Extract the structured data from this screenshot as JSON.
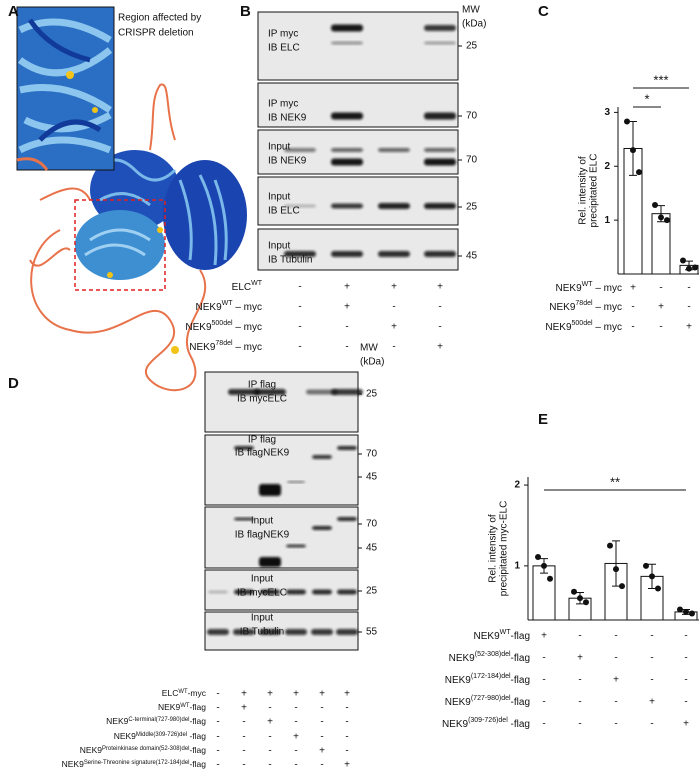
{
  "panel_labels": [
    "A",
    "B",
    "C",
    "D",
    "E"
  ],
  "panel_a": {
    "inset_caption": [
      "Region affected by",
      "CRISPR deletion"
    ]
  },
  "panel_b": {
    "mw_header": [
      "MW",
      "(kDa)"
    ],
    "blots": [
      {
        "label": [
          "IP myc",
          "IB ELC"
        ],
        "mw": [
          25
        ]
      },
      {
        "label": [
          "IP myc",
          "IB NEK9"
        ],
        "mw": [
          70
        ]
      },
      {
        "label": [
          "Input",
          "IB NEK9"
        ],
        "mw": [
          70
        ]
      },
      {
        "label": [
          "Input",
          "IB ELC"
        ],
        "mw": [
          25
        ]
      },
      {
        "label": [
          "Input",
          "IB Tubulin"
        ],
        "mw": [
          45
        ]
      }
    ],
    "conditions": [
      {
        "name": {
          "text": "ELC",
          "sup": "WT"
        },
        "signs": [
          "-",
          "+",
          "+",
          "+"
        ]
      },
      {
        "name": {
          "text": "NEK9",
          "sup": "WT",
          "suffix": " – myc"
        },
        "signs": [
          "-",
          "+",
          "-",
          "-"
        ]
      },
      {
        "name": {
          "text": "NEK9",
          "sup": "500del",
          "suffix": " – myc"
        },
        "signs": [
          "-",
          "-",
          "+",
          "-"
        ]
      },
      {
        "name": {
          "text": "NEK9",
          "sup": "78del",
          "suffix": " – myc"
        },
        "signs": [
          "-",
          "-",
          "-",
          "+"
        ]
      }
    ]
  },
  "panel_d": {
    "mw_header": [
      "MW",
      "(kDa)"
    ],
    "blots": [
      {
        "label": [
          "IP flag",
          "IB mycELC"
        ],
        "mw": [
          25
        ]
      },
      {
        "label": [
          "IP flag",
          "IB flagNEK9"
        ],
        "mw": [
          70,
          45
        ]
      },
      {
        "label": [
          "Input",
          "IB flagNEK9"
        ],
        "mw": [
          70,
          45
        ]
      },
      {
        "label": [
          "Input",
          "IB mycELC"
        ],
        "mw": [
          25
        ]
      },
      {
        "label": [
          "Input",
          "IB Tubulin"
        ],
        "mw": [
          55
        ]
      }
    ],
    "conditions": [
      {
        "name": {
          "text": "ELC",
          "sup": "WT",
          "suffix": "-myc"
        },
        "signs": [
          "-",
          "+",
          "+",
          "+",
          "+",
          "+"
        ]
      },
      {
        "name": {
          "text": "NEK9",
          "sup": "WT",
          "suffix": "-flag"
        },
        "signs": [
          "-",
          "+",
          "-",
          "-",
          "-",
          "-"
        ]
      },
      {
        "name": {
          "text": "NEK9",
          "sup": "C-terminal(727-980)del",
          "suffix": "-flag"
        },
        "signs": [
          "-",
          "-",
          "+",
          "-",
          "-",
          "-"
        ]
      },
      {
        "name": {
          "text": "NEK9",
          "sup": "Middle(309-726)del",
          "suffix": " -flag"
        },
        "signs": [
          "-",
          "-",
          "-",
          "+",
          "-",
          "-"
        ]
      },
      {
        "name": {
          "text": "NEK9",
          "sup": "Proteinkinase domain(52-308)del",
          "suffix": "-flag"
        },
        "signs": [
          "-",
          "-",
          "-",
          "-",
          "+",
          "-"
        ]
      },
      {
        "name": {
          "text": "NEK9",
          "sup": "Serine-Threonine signature(172-184)del",
          "suffix": "-flag"
        },
        "signs": [
          "-",
          "-",
          "-",
          "-",
          "-",
          "+"
        ]
      }
    ]
  },
  "chart_data": [
    {
      "type": "bar",
      "ylabel": [
        "Rel. intensity of",
        "precipitated ELC"
      ],
      "values": [
        2.33,
        1.12,
        0.16
      ],
      "errors": [
        0.5,
        0.15,
        0.08
      ],
      "points": [
        [
          2.83,
          2.3,
          1.89
        ],
        [
          1.28,
          1.05,
          1.0
        ],
        [
          0.25,
          0.1,
          0.12
        ]
      ],
      "ylim": [
        0,
        3.1
      ],
      "yticks": [
        1,
        2,
        3
      ],
      "significance": [
        "*",
        "***"
      ],
      "conditions": [
        {
          "name": {
            "text": "NEK9",
            "sup": "WT",
            "suffix": " – myc"
          },
          "signs": [
            "+",
            "-",
            "-"
          ]
        },
        {
          "name": {
            "text": "NEK9",
            "sup": "78del",
            "suffix": " – myc"
          },
          "signs": [
            "-",
            "+",
            "-"
          ]
        },
        {
          "name": {
            "text": "NEK9",
            "sup": "500del",
            "suffix": " – myc"
          },
          "signs": [
            "-",
            "-",
            "+"
          ]
        }
      ]
    },
    {
      "type": "bar",
      "ylabel": [
        "Rel. intensity of",
        "precipitated myc-ELC"
      ],
      "values": [
        1.0,
        0.6,
        1.03,
        0.87,
        0.43
      ],
      "errors": [
        0.09,
        0.07,
        0.28,
        0.15,
        0.03
      ],
      "points": [
        [
          1.11,
          1.0,
          0.84
        ],
        [
          0.68,
          0.6,
          0.55
        ],
        [
          1.25,
          0.96,
          0.75
        ],
        [
          1.0,
          0.87,
          0.72
        ],
        [
          0.46,
          0.43,
          0.41
        ]
      ],
      "ylim": [
        0.33,
        2.1
      ],
      "yticks": [
        1,
        2
      ],
      "significance": [
        "**"
      ],
      "conditions": [
        {
          "name": {
            "text": "NEK9",
            "sup": "WT",
            "suffix": "-flag"
          },
          "signs": [
            "+",
            "-",
            "-",
            "-",
            "-"
          ]
        },
        {
          "name": {
            "text": "NEK9",
            "sup": "(52-308)del",
            "suffix": "-flag"
          },
          "signs": [
            "-",
            "+",
            "-",
            "-",
            "-"
          ]
        },
        {
          "name": {
            "text": "NEK9",
            "sup": "(172-184)del",
            "suffix": "-flag"
          },
          "signs": [
            "-",
            "-",
            "+",
            "-",
            "-"
          ]
        },
        {
          "name": {
            "text": "NEK9",
            "sup": "(727-980)del",
            "suffix": "-flag"
          },
          "signs": [
            "-",
            "-",
            "-",
            "+",
            "-"
          ]
        },
        {
          "name": {
            "text": "NEK9",
            "sup": "(309-726)del",
            "suffix": " -flag"
          },
          "signs": [
            "-",
            "-",
            "-",
            "-",
            "+"
          ]
        }
      ]
    }
  ]
}
